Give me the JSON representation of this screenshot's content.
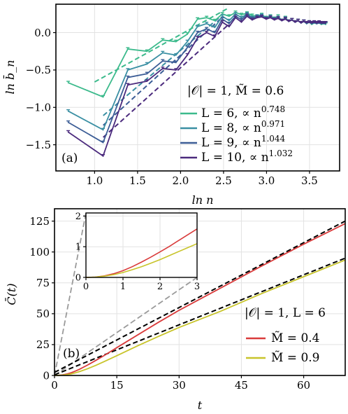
{
  "chart_data": [
    {
      "id": "a",
      "type": "line",
      "panel_label": "(a)",
      "xlabel": "ln n",
      "ylabel": "ln b̄_n",
      "xlim": [
        0.55,
        3.85
      ],
      "ylim": [
        -1.85,
        0.38
      ],
      "x_ticks": [
        1.0,
        1.5,
        2.0,
        2.5,
        3.0,
        3.5
      ],
      "x_tick_labels": [
        "1.0",
        "1.5",
        "2.0",
        "2.5",
        "3.0",
        "3.5"
      ],
      "y_ticks": [
        -1.5,
        -1.0,
        -0.5,
        0.0
      ],
      "y_tick_labels": [
        "−1.5",
        "−1.0",
        "−0.5",
        "0.0"
      ],
      "grid": true,
      "legend_title": "|𝒪| = 1, M̃ = 0.6",
      "legend_position": "right",
      "x": [
        0.693,
        1.099,
        1.386,
        1.609,
        1.792,
        1.946,
        2.079,
        2.197,
        2.303,
        2.398,
        2.485,
        2.565,
        2.639,
        2.708,
        2.773,
        2.833,
        2.89,
        2.944,
        2.996,
        3.045,
        3.091,
        3.135,
        3.178,
        3.219,
        3.258,
        3.296,
        3.332,
        3.367,
        3.401,
        3.434,
        3.466,
        3.497,
        3.526,
        3.555,
        3.584,
        3.611,
        3.638,
        3.664,
        3.689
      ],
      "series": [
        {
          "name": "L = 6, ∝ n^0.748",
          "label_main": "L = 6, ∝ n",
          "exponent": "0.748",
          "color": "#3cba8c",
          "values": [
            -0.67,
            -0.86,
            -0.22,
            -0.25,
            -0.1,
            -0.12,
            -0.02,
            0.18,
            0.2,
            0.16,
            0.25,
            0.22,
            0.27,
            0.24,
            0.26,
            0.23,
            0.22,
            0.24,
            0.2,
            0.22,
            0.19,
            0.22,
            0.16,
            0.2,
            0.15,
            0.17,
            0.14,
            0.16,
            0.13,
            0.15,
            0.12,
            0.14,
            0.11,
            0.13,
            0.12,
            0.13,
            0.11,
            0.12,
            0.11
          ],
          "fit_x": [
            1.0,
            2.56
          ],
          "fit_y": [
            -0.66,
            0.33
          ]
        },
        {
          "name": "L = 8, ∝ n^0.971",
          "label_main": "L = 8, ∝ n",
          "exponent": "0.971",
          "color": "#3a8fa3",
          "values": [
            -1.05,
            -1.3,
            -0.5,
            -0.42,
            -0.27,
            -0.3,
            -0.12,
            0.08,
            0.12,
            0.07,
            0.22,
            0.16,
            0.25,
            0.2,
            0.25,
            0.2,
            0.22,
            0.23,
            0.19,
            0.21,
            0.18,
            0.2,
            0.16,
            0.19,
            0.15,
            0.17,
            0.14,
            0.16,
            0.13,
            0.15,
            0.12,
            0.14,
            0.12,
            0.13,
            0.12,
            0.13,
            0.12,
            0.12,
            0.12
          ],
          "fit_x": [
            1.1,
            2.45
          ],
          "fit_y": [
            -1.11,
            0.2
          ]
        },
        {
          "name": "L = 9, ∝ n^1.044",
          "label_main": "L = 9, ∝ n",
          "exponent": "1.044",
          "color": "#3c5d96",
          "values": [
            -1.2,
            -1.47,
            -0.6,
            -0.55,
            -0.38,
            -0.4,
            -0.2,
            0.0,
            0.05,
            0.0,
            0.18,
            0.12,
            0.22,
            0.17,
            0.24,
            0.19,
            0.21,
            0.22,
            0.19,
            0.21,
            0.18,
            0.2,
            0.16,
            0.19,
            0.15,
            0.17,
            0.14,
            0.16,
            0.13,
            0.15,
            0.13,
            0.14,
            0.12,
            0.14,
            0.12,
            0.13,
            0.12,
            0.13,
            0.12
          ],
          "fit_x": [
            1.1,
            2.5
          ],
          "fit_y": [
            -1.24,
            0.22
          ]
        },
        {
          "name": "L = 10, ∝ n^1.032",
          "label_main": "L = 10, ∝ n",
          "exponent": "1.032",
          "color": "#4b2a7d",
          "values": [
            -1.33,
            -1.65,
            -0.7,
            -0.65,
            -0.48,
            -0.5,
            -0.3,
            -0.07,
            0.0,
            -0.05,
            0.14,
            0.08,
            0.2,
            0.14,
            0.22,
            0.17,
            0.2,
            0.21,
            0.18,
            0.2,
            0.17,
            0.19,
            0.16,
            0.18,
            0.15,
            0.17,
            0.14,
            0.16,
            0.13,
            0.15,
            0.13,
            0.14,
            0.13,
            0.14,
            0.13,
            0.14,
            0.13,
            0.13,
            0.13
          ],
          "fit_x": [
            1.1,
            2.55
          ],
          "fit_y": [
            -1.4,
            0.1
          ]
        }
      ]
    },
    {
      "id": "b",
      "type": "line",
      "panel_label": "(b)",
      "xlabel": "t",
      "ylabel": "C̄(t)",
      "xlim": [
        0,
        70
      ],
      "ylim": [
        0,
        135
      ],
      "x_ticks": [
        0,
        15,
        30,
        45,
        60
      ],
      "x_tick_labels": [
        "0",
        "15",
        "30",
        "45",
        "60"
      ],
      "y_ticks": [
        0,
        25,
        50,
        75,
        100,
        125
      ],
      "y_tick_labels": [
        "0",
        "25",
        "50",
        "75",
        "100",
        "125"
      ],
      "grid": true,
      "legend_title": "|𝒪| = 1,  L = 6",
      "legend_position": "bottom-right",
      "series": [
        {
          "name": "M̃ = 0.4",
          "color": "#d93b3b",
          "x": [
            0,
            1,
            2,
            3,
            4,
            5,
            6,
            8,
            10,
            12,
            15,
            20,
            25,
            30,
            40,
            50,
            60,
            70
          ],
          "values": [
            0,
            0.1,
            0.5,
            1.2,
            2.2,
            3.5,
            5.0,
            8.5,
            12.3,
            16.2,
            22.5,
            32.8,
            43.0,
            52.8,
            70.8,
            88.8,
            106.3,
            123.0
          ]
        },
        {
          "name": "M̃ = 0.9",
          "color": "#c8c42a",
          "x": [
            0,
            1,
            2,
            3,
            4,
            5,
            6,
            8,
            10,
            12,
            15,
            20,
            25,
            30,
            40,
            50,
            60,
            70
          ],
          "values": [
            0,
            0.1,
            0.3,
            0.7,
            1.3,
            2.1,
            3.1,
            5.5,
            8.3,
            11.3,
            16.0,
            24.0,
            31.6,
            38.9,
            52.0,
            66.5,
            80.0,
            93.5
          ]
        }
      ],
      "fits": [
        {
          "color": "#000000",
          "x": [
            0,
            70
          ],
          "values": [
            2.5,
            125.0
          ]
        },
        {
          "color": "#000000",
          "x": [
            0,
            70
          ],
          "values": [
            0.5,
            95.0
          ]
        }
      ],
      "inset": {
        "xlim": [
          0,
          3
        ],
        "ylim": [
          0,
          2.1
        ],
        "x_ticks": [
          0,
          1,
          2,
          3
        ],
        "x_tick_labels": [
          "0",
          "1",
          "2",
          "3"
        ],
        "y_ticks": [
          0,
          1,
          2
        ],
        "y_tick_labels": [
          "0",
          "1",
          "2"
        ],
        "grid": true,
        "x": [
          0,
          0.25,
          0.5,
          0.75,
          1.0,
          1.25,
          1.5,
          1.75,
          2.0,
          2.25,
          2.5,
          2.75,
          3.0
        ],
        "series": [
          {
            "color": "#d93b3b",
            "values": [
              0,
              0.01,
              0.05,
              0.12,
              0.22,
              0.35,
              0.5,
              0.66,
              0.83,
              1.01,
              1.2,
              1.39,
              1.58
            ]
          },
          {
            "color": "#c8c42a",
            "values": [
              0,
              0.01,
              0.04,
              0.09,
              0.16,
              0.25,
              0.35,
              0.46,
              0.58,
              0.71,
              0.84,
              0.97,
              1.1
            ]
          }
        ]
      }
    }
  ]
}
